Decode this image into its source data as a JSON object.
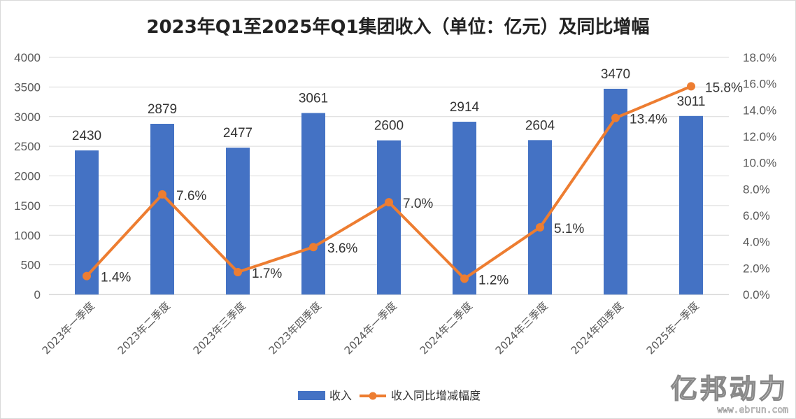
{
  "chart_data": {
    "type": "bar",
    "title": "2023年Q1至2025年Q1集团收入（单位：亿元）及同比增幅",
    "categories": [
      "2023年一季度",
      "2023年二季度",
      "2023年三季度",
      "2023年四季度",
      "2024年一季度",
      "2024年二季度",
      "2024年三季度",
      "2024年四季度",
      "2025年一季度"
    ],
    "series": [
      {
        "name": "收入",
        "type": "bar",
        "axis": "left",
        "values": [
          2430,
          2879,
          2477,
          3061,
          2600,
          2914,
          2604,
          3470,
          3011
        ],
        "labels": [
          "2430",
          "2879",
          "2477",
          "3061",
          "2600",
          "2914",
          "2604",
          "3470",
          "3011"
        ],
        "color": "#4472C4"
      },
      {
        "name": "收入同比增减幅度",
        "type": "line",
        "axis": "right",
        "values": [
          1.4,
          7.6,
          1.7,
          3.6,
          7.0,
          1.2,
          5.1,
          13.4,
          15.8
        ],
        "labels": [
          "1.4%",
          "7.6%",
          "1.7%",
          "3.6%",
          "7.0%",
          "1.2%",
          "5.1%",
          "13.4%",
          "15.8%"
        ],
        "color": "#ED7D31"
      }
    ],
    "y_left": {
      "range": [
        0,
        4000
      ],
      "ticks": [
        0,
        500,
        1000,
        1500,
        2000,
        2500,
        3000,
        3500,
        4000
      ],
      "tick_labels": [
        "0",
        "500",
        "1000",
        "1500",
        "2000",
        "2500",
        "3000",
        "3500",
        "4000"
      ]
    },
    "y_right": {
      "range": [
        0,
        18
      ],
      "ticks": [
        0,
        2,
        4,
        6,
        8,
        10,
        12,
        14,
        16,
        18
      ],
      "tick_labels": [
        "0.0%",
        "2.0%",
        "4.0%",
        "6.0%",
        "8.0%",
        "10.0%",
        "12.0%",
        "14.0%",
        "16.0%",
        "18.0%"
      ]
    },
    "grid": true,
    "legend_position": "bottom"
  },
  "watermark": {
    "name": "亿邦动力",
    "url": "www.ebrun.com"
  }
}
